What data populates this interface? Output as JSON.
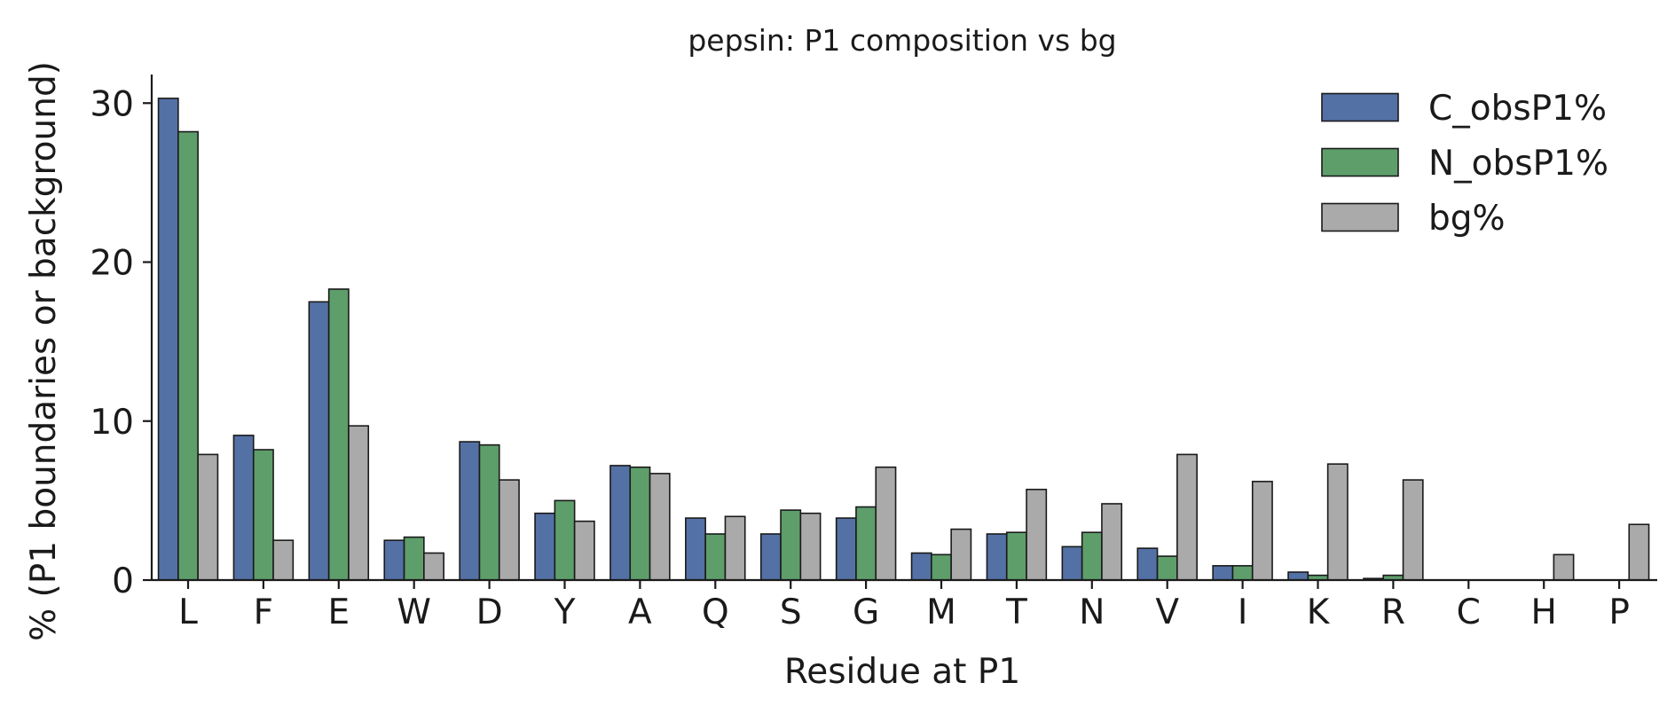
{
  "chart_data": {
    "type": "bar",
    "title": "pepsin: P1 composition vs bg",
    "xlabel": "Residue at P1",
    "ylabel": "% (P1 boundaries or background)",
    "categories": [
      "L",
      "F",
      "E",
      "W",
      "D",
      "Y",
      "A",
      "Q",
      "S",
      "G",
      "M",
      "T",
      "N",
      "V",
      "I",
      "K",
      "R",
      "C",
      "H",
      "P"
    ],
    "ylim": [
      0,
      31.8
    ],
    "yticks": [
      0,
      10,
      20,
      30
    ],
    "grid": false,
    "legend_position": "top-right",
    "series": [
      {
        "name": "C_obsP1%",
        "color": "#5471a5",
        "values": [
          30.3,
          9.1,
          17.5,
          2.5,
          8.7,
          4.2,
          7.2,
          3.9,
          2.9,
          3.9,
          1.7,
          2.9,
          2.1,
          2.0,
          0.9,
          0.5,
          0.1,
          0.0,
          0.0,
          0.0
        ]
      },
      {
        "name": "N_obsP1%",
        "color": "#5e9e6b",
        "values": [
          28.2,
          8.2,
          18.3,
          2.7,
          8.5,
          5.0,
          7.1,
          2.9,
          4.4,
          4.6,
          1.6,
          3.0,
          3.0,
          1.5,
          0.9,
          0.3,
          0.3,
          0.0,
          0.0,
          0.0
        ]
      },
      {
        "name": "bg%",
        "color": "#aaaaaa",
        "values": [
          7.9,
          2.5,
          9.7,
          1.7,
          6.3,
          3.7,
          6.7,
          4.0,
          4.2,
          7.1,
          3.2,
          5.7,
          4.8,
          7.9,
          6.2,
          7.3,
          6.3,
          0.0,
          1.6,
          3.5
        ]
      }
    ]
  }
}
